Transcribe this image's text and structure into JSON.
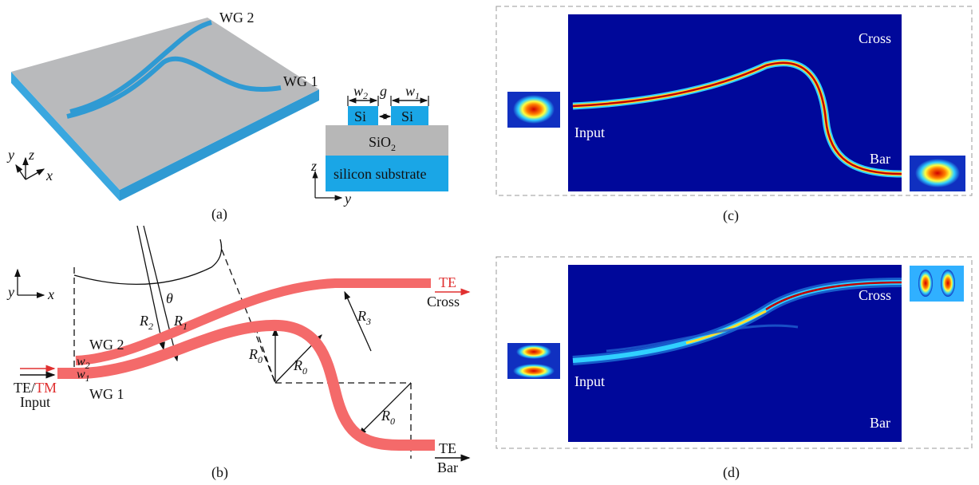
{
  "a": {
    "label": "(a)",
    "wg2": "WG 2",
    "wg1": "WG 1",
    "axis_y": "y",
    "axis_z": "z",
    "axis_x": "x",
    "section": {
      "w2": {
        "base": "w",
        "sub": "2"
      },
      "gap": "g",
      "w1": {
        "base": "w",
        "sub": "1"
      },
      "si_left": "Si",
      "si_right": "Si",
      "oxide": {
        "base": "SiO",
        "sub": "2"
      },
      "substrate": "silicon substrate",
      "axis_z": "z",
      "axis_y": "y"
    }
  },
  "b": {
    "label": "(b)",
    "axis_y": "y",
    "axis_x": "x",
    "theta": "θ",
    "r2": {
      "base": "R",
      "sub": "2"
    },
    "r1": {
      "base": "R",
      "sub": "1"
    },
    "r3": {
      "base": "R",
      "sub": "3"
    },
    "r0_left": {
      "base": "R",
      "sub": "0"
    },
    "r0_mid": {
      "base": "R",
      "sub": "0"
    },
    "r0_right": {
      "base": "R",
      "sub": "0"
    },
    "wg2": "WG 2",
    "wg1": "WG 1",
    "w2": {
      "base": "w",
      "sub": "2"
    },
    "w1": {
      "base": "w",
      "sub": "1"
    },
    "input_mode": {
      "te": "TE/",
      "tm": "TM"
    },
    "input": "Input",
    "cross_mode": "TE",
    "cross": "Cross",
    "bar_mode": "TE",
    "bar": "Bar"
  },
  "c": {
    "label": "(c)",
    "cross": "Cross",
    "input": "Input",
    "bar": "Bar"
  },
  "d": {
    "label": "(d)",
    "cross": "Cross",
    "input": "Input",
    "bar": "Bar"
  }
}
